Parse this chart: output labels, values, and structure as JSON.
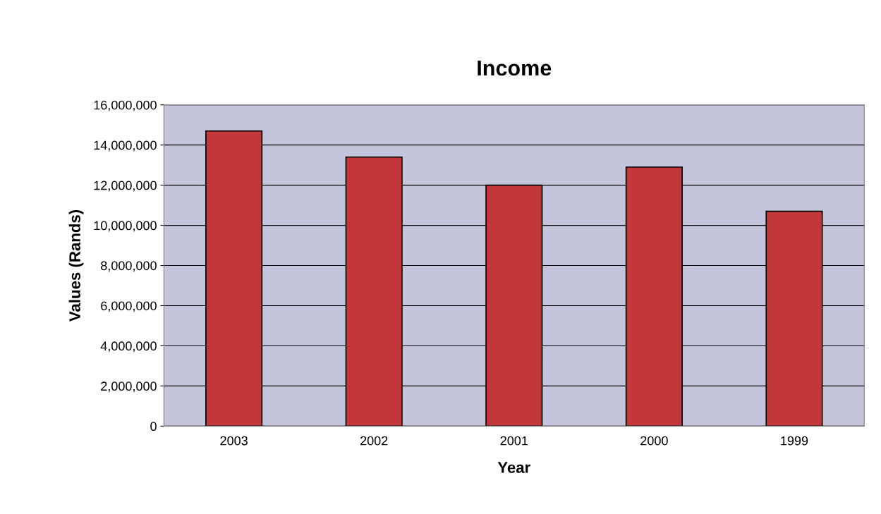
{
  "chart_data": {
    "type": "bar",
    "title": "Income",
    "xlabel": "Year",
    "ylabel": "Values (Rands)",
    "categories": [
      "2003",
      "2002",
      "2001",
      "2000",
      "1999"
    ],
    "values": [
      14700000,
      13400000,
      12000000,
      12900000,
      10700000
    ],
    "color": "#c2373a",
    "ylim": [
      0,
      16000000
    ],
    "yticks": [
      {
        "value": 0,
        "label": "0"
      },
      {
        "value": 2000000,
        "label": "2,000,000"
      },
      {
        "value": 4000000,
        "label": "4,000,000"
      },
      {
        "value": 6000000,
        "label": "6,000,000"
      },
      {
        "value": 8000000,
        "label": "8,000,000"
      },
      {
        "value": 10000000,
        "label": "10,000,000"
      },
      {
        "value": 12000000,
        "label": "12,000,000"
      },
      {
        "value": 14000000,
        "label": "14,000,000"
      },
      {
        "value": 16000000,
        "label": "16,000,000"
      }
    ],
    "grid": "y",
    "legend": false
  }
}
